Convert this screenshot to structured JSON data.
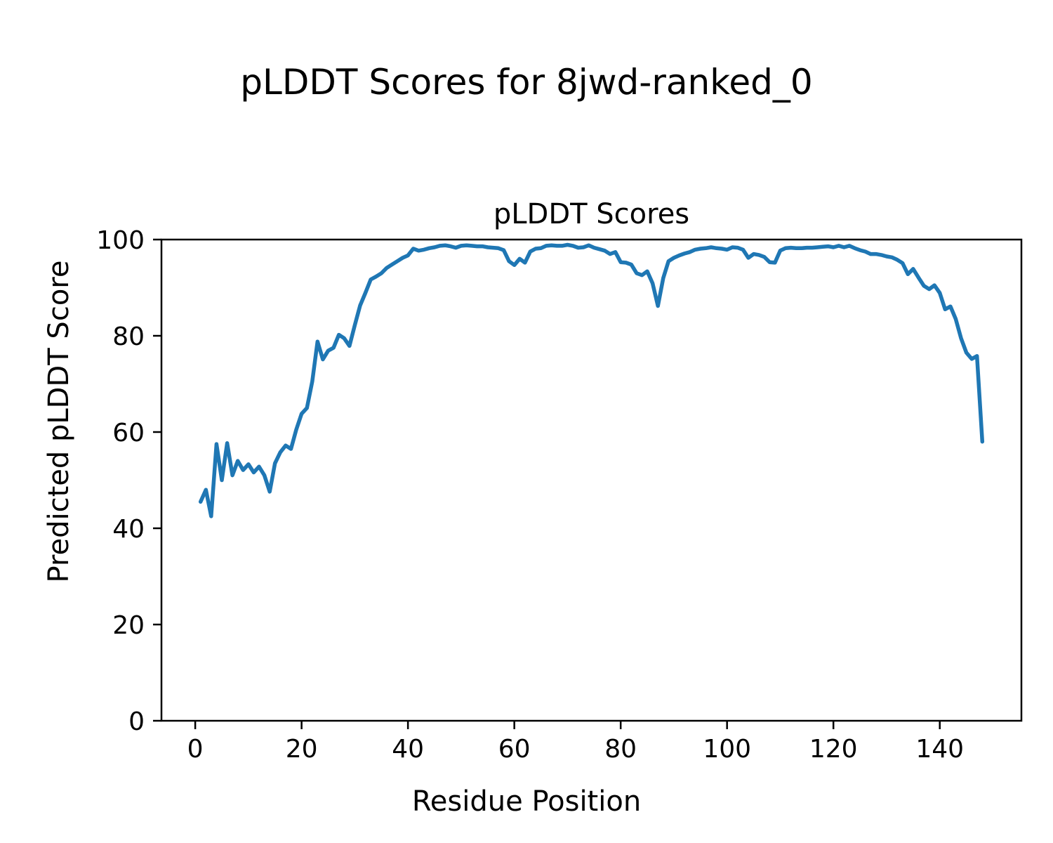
{
  "figure": {
    "suptitle": "pLDDT Scores for 8jwd-ranked_0"
  },
  "chart_data": {
    "type": "line",
    "title": "pLDDT Scores",
    "xlabel": "Residue Position",
    "ylabel": "Predicted pLDDT Score",
    "x_start": 1,
    "x_ticks": [
      0,
      20,
      40,
      60,
      80,
      100,
      120,
      140
    ],
    "y_ticks": [
      0,
      20,
      40,
      60,
      80,
      100
    ],
    "xlim": [
      -6.35,
      155.35
    ],
    "ylim": [
      0,
      100
    ],
    "grid": false,
    "legend": "none",
    "line_color": "#1f77b4",
    "line_width": 5.5,
    "values": [
      45.5,
      48,
      42.5,
      57.5,
      50,
      57.7,
      51,
      54,
      52.1,
      53.3,
      51.6,
      52.8,
      51,
      47.6,
      53.5,
      55.8,
      57.2,
      56.5,
      60.5,
      63.8,
      65,
      70.5,
      78.8,
      75.1,
      76.9,
      77.5,
      80.2,
      79.5,
      77.9,
      82.2,
      86.3,
      88.9,
      91.7,
      92.3,
      93,
      94.1,
      94.8,
      95.5,
      96.2,
      96.7,
      98.1,
      97.7,
      97.9,
      98.2,
      98.4,
      98.7,
      98.8,
      98.6,
      98.3,
      98.7,
      98.8,
      98.7,
      98.6,
      98.6,
      98.4,
      98.3,
      98.2,
      97.8,
      95.5,
      94.7,
      96,
      95.2,
      97.5,
      98.1,
      98.2,
      98.7,
      98.8,
      98.7,
      98.7,
      98.9,
      98.7,
      98.3,
      98.4,
      98.8,
      98.3,
      98,
      97.7,
      97,
      97.4,
      95.3,
      95.2,
      94.8,
      93,
      92.6,
      93.4,
      90.9,
      86.2,
      92,
      95.5,
      96.2,
      96.7,
      97.1,
      97.4,
      97.9,
      98.1,
      98.2,
      98.4,
      98.2,
      98.1,
      97.9,
      98.4,
      98.3,
      97.9,
      96.2,
      97,
      96.8,
      96.4,
      95.3,
      95.2,
      97.7,
      98.2,
      98.3,
      98.2,
      98.2,
      98.3,
      98.3,
      98.4,
      98.5,
      98.6,
      98.4,
      98.7,
      98.4,
      98.7,
      98.2,
      97.8,
      97.5,
      97,
      97,
      96.8,
      96.5,
      96.3,
      95.8,
      95.1,
      92.8,
      93.9,
      92.1,
      90.4,
      89.7,
      90.5,
      88.9,
      85.5,
      86.1,
      83.5,
      79.5,
      76.5,
      75.2,
      75.8,
      58
    ]
  }
}
